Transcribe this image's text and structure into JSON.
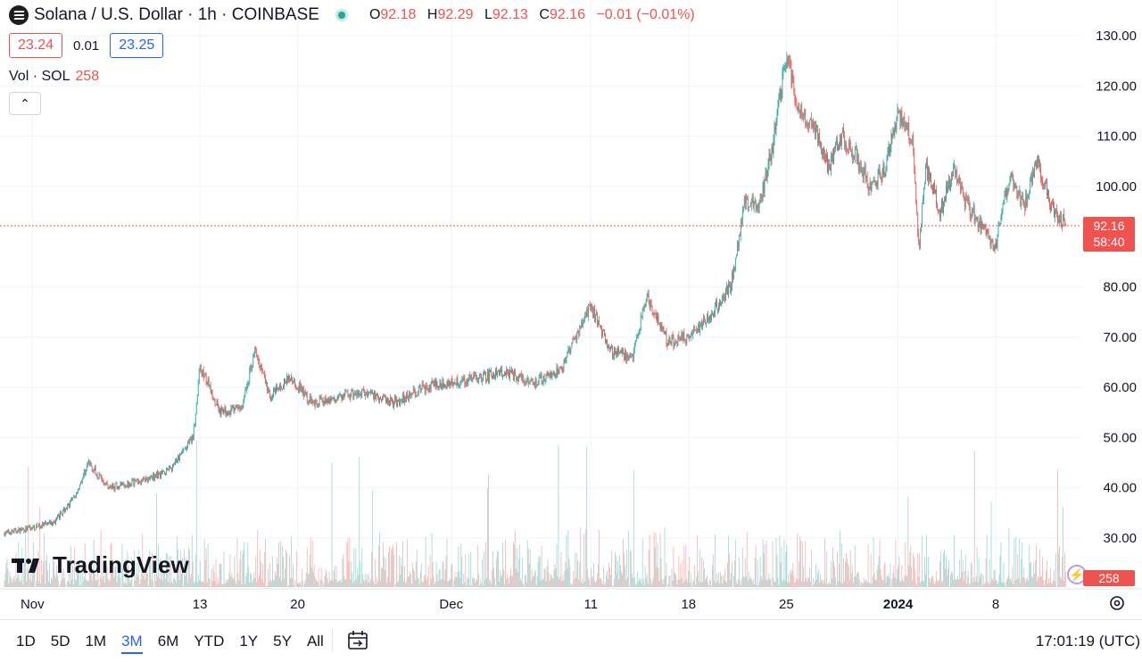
{
  "legend": {
    "title": "Solana / U.S. Dollar · 1h · COINBASE",
    "open_label": "O",
    "open": "92.18",
    "high_label": "H",
    "high": "92.29",
    "low_label": "L",
    "low": "92.13",
    "close_label": "C",
    "close": "92.16",
    "change": "−0.01 (−0.01%)"
  },
  "spread": {
    "sell": "23.24",
    "value": "0.01",
    "buy": "23.25"
  },
  "volume_legend": {
    "label": "Vol · SOL",
    "value": "258"
  },
  "watermark": "TradingView",
  "price_label": {
    "price": "92.16",
    "countdown": "58:40"
  },
  "volume_label": "258",
  "toolbar": {
    "periods": [
      "1D",
      "5D",
      "1M",
      "3M",
      "6M",
      "YTD",
      "1Y",
      "5Y",
      "All"
    ],
    "active_period": "3M",
    "clock": "17:01:19 (UTC)"
  },
  "colors": {
    "up": "#26a69a",
    "down": "#ef5350",
    "accent": "#2962ff",
    "grid": "#f0f3fa"
  },
  "chart_data": {
    "type": "candlestick",
    "title": "Solana / U.S. Dollar · 1h · COINBASE",
    "ylim": [
      20,
      133
    ],
    "yticks": [
      "130.00",
      "120.00",
      "110.00",
      "100.00",
      "80.00",
      "70.00",
      "60.00",
      "50.00",
      "40.00",
      "30.00"
    ],
    "x_ticks": [
      "Nov",
      "13",
      "20",
      "Dec",
      "11",
      "18",
      "25",
      "2024",
      "8"
    ],
    "x_tick_days": [
      2,
      14,
      21,
      32,
      42,
      49,
      56,
      64,
      71
    ],
    "x_days": [
      0,
      2,
      3.5,
      5,
      6,
      7.5,
      9,
      10.5,
      12,
      13.5,
      14,
      15.5,
      17,
      18,
      19,
      20.5,
      22,
      24,
      26,
      28,
      30,
      32,
      34,
      36,
      38,
      40,
      41,
      42,
      43.5,
      45,
      46,
      47.5,
      49,
      50.5,
      52,
      53,
      54,
      55,
      56,
      57,
      58,
      59,
      60,
      61,
      62,
      63,
      64,
      65,
      65.5,
      66,
      67,
      68,
      69,
      70,
      71,
      72,
      73,
      74,
      75,
      76
    ],
    "close_path": [
      31,
      32,
      33,
      38,
      45,
      40,
      41,
      42,
      44,
      50,
      64,
      55,
      56,
      68,
      58,
      62,
      57,
      58,
      59,
      57,
      60,
      61,
      62,
      63,
      61,
      64,
      71,
      76,
      67,
      66,
      78,
      69,
      70,
      74,
      80,
      97,
      96,
      108,
      126,
      114,
      112,
      104,
      110,
      106,
      100,
      103,
      115,
      110,
      88,
      104,
      95,
      103,
      96,
      92,
      88,
      102,
      96,
      105,
      96,
      92.16
    ],
    "last_price": 92.16,
    "volume_max": 50000
  }
}
